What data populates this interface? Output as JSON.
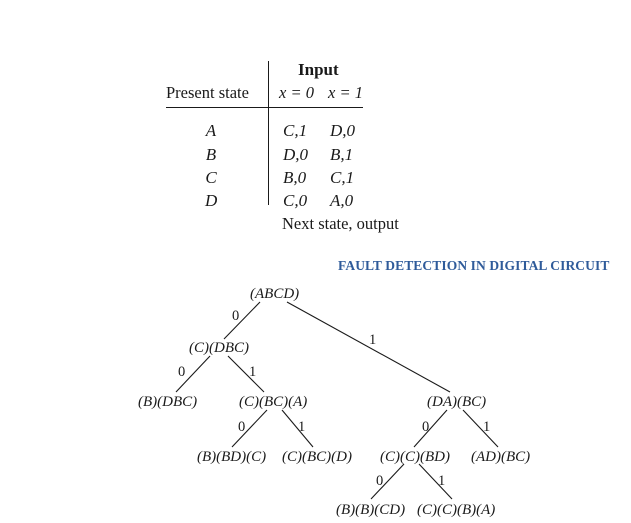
{
  "state_table": {
    "input_header": "Input",
    "present_state_header": "Present state",
    "column_headers": [
      "x = 0",
      "x = 1"
    ],
    "rows": [
      {
        "state": "A",
        "x0": "C,1",
        "x1": "D,0"
      },
      {
        "state": "B",
        "x0": "D,0",
        "x1": "B,1"
      },
      {
        "state": "C",
        "x0": "B,0",
        "x1": "C,1"
      },
      {
        "state": "D",
        "x0": "C,0",
        "x1": "A,0"
      }
    ],
    "caption": "Next state, output"
  },
  "running_header": "FAULT DETECTION IN DIGITAL CIRCUIT",
  "colors": {
    "running_header": "#2f5b9a",
    "ink": "#1a1a1a"
  },
  "tree": {
    "nodes": {
      "root": "(ABCD)",
      "n0": "(C)(DBC)",
      "n1": "(DA)(BC)",
      "n00": "(B)(DBC)",
      "n01": "(C)(BC)(A)",
      "n010": "(B)(BD)(C)",
      "n011": "(C)(BC)(D)",
      "n10": "(C)(C)(BD)",
      "n11": "(AD)(BC)",
      "n100": "(B)(B)(CD)",
      "n101": "(C)(C)(B)(A)"
    },
    "edges": [
      {
        "from": "root",
        "to": "n0",
        "label": "0"
      },
      {
        "from": "root",
        "to": "n1",
        "label": "1"
      },
      {
        "from": "n0",
        "to": "n00",
        "label": "0"
      },
      {
        "from": "n0",
        "to": "n01",
        "label": "1"
      },
      {
        "from": "n01",
        "to": "n010",
        "label": "0"
      },
      {
        "from": "n01",
        "to": "n011",
        "label": "1"
      },
      {
        "from": "n1",
        "to": "n10",
        "label": "0"
      },
      {
        "from": "n1",
        "to": "n11",
        "label": "1"
      },
      {
        "from": "n10",
        "to": "n100",
        "label": "0"
      },
      {
        "from": "n10",
        "to": "n101",
        "label": "1"
      }
    ]
  }
}
